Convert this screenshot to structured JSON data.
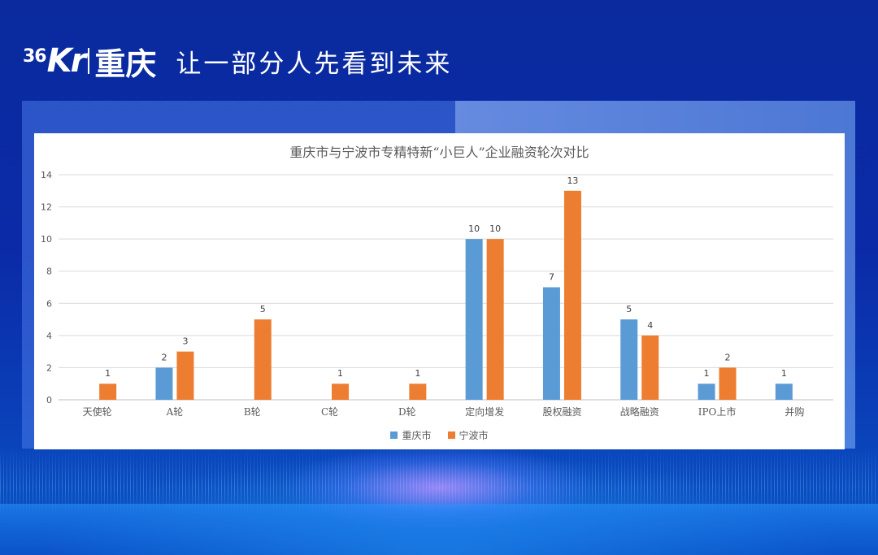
{
  "header": {
    "logo_36": "36",
    "logo_kr": "Kr",
    "city": "重庆",
    "slogan": "让一部分人先看到未来"
  },
  "chart_data": {
    "type": "bar",
    "title": "重庆市与宁波市专精特新“小巨人”企业融资轮次对比",
    "categories": [
      "天使轮",
      "A轮",
      "B轮",
      "C轮",
      "D轮",
      "定向增发",
      "股权融资",
      "战略融资",
      "IPO上市",
      "并购"
    ],
    "series": [
      {
        "name": "重庆市",
        "color": "#5b9bd5",
        "values": [
          null,
          2,
          null,
          null,
          null,
          10,
          7,
          5,
          1,
          1
        ]
      },
      {
        "name": "宁波市",
        "color": "#ed7d31",
        "values": [
          1,
          3,
          5,
          1,
          1,
          10,
          13,
          4,
          2,
          null
        ]
      }
    ],
    "ylim": [
      0,
      14
    ],
    "yticks": [
      0,
      2,
      4,
      6,
      8,
      10,
      12,
      14
    ],
    "grid": true,
    "legend": "bottom",
    "xlabel": "",
    "ylabel": ""
  }
}
